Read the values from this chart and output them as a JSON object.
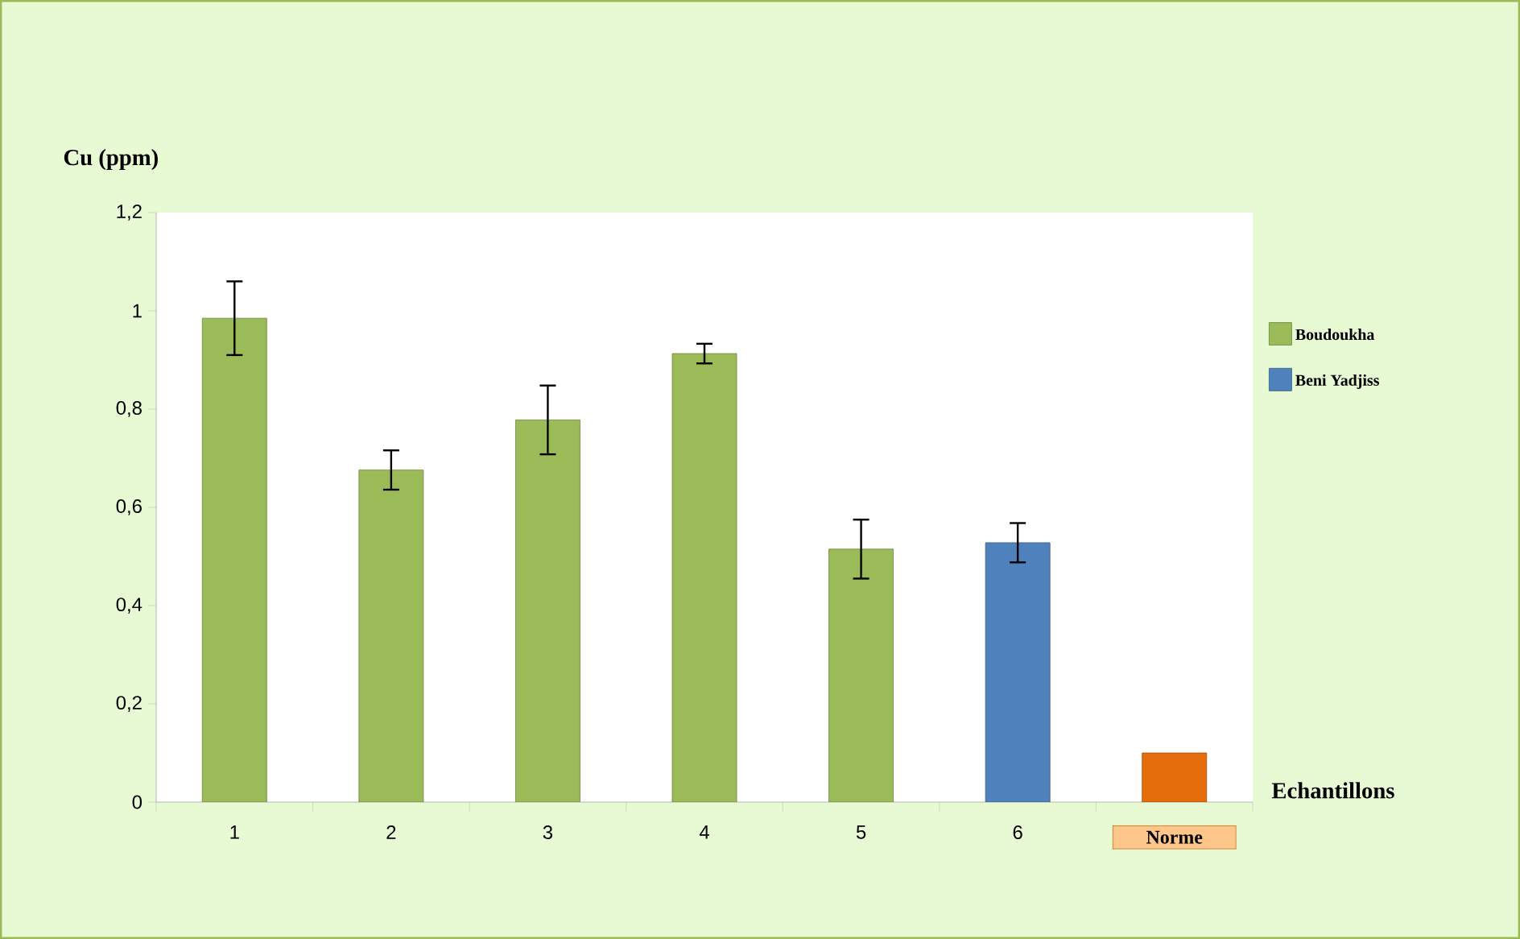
{
  "chart_data": {
    "type": "bar",
    "ylabel": "Cu (ppm)",
    "xlabel": "Echantillons",
    "categories": [
      "1",
      "2",
      "3",
      "4",
      "5",
      "6",
      "Norme"
    ],
    "series": [
      {
        "name": "Boudoukha",
        "color": "#9bbb59",
        "values": [
          0.985,
          0.676,
          0.778,
          0.913,
          0.515,
          null,
          null
        ],
        "errors": [
          0.075,
          0.04,
          0.07,
          0.02,
          0.06,
          null,
          null
        ]
      },
      {
        "name": "Beni Yadjiss",
        "color": "#4f81bd",
        "values": [
          null,
          null,
          null,
          null,
          null,
          0.528,
          null
        ],
        "errors": [
          null,
          null,
          null,
          null,
          null,
          0.04,
          null
        ]
      },
      {
        "color": "#e46c0a",
        "values": [
          null,
          null,
          null,
          null,
          null,
          null,
          0.1
        ]
      }
    ],
    "ylim": [
      0,
      1.2
    ],
    "yticks": [
      0,
      {
        "value": 0.2,
        "label": "0,2"
      },
      {
        "value": 0.4,
        "label": "0,4"
      },
      {
        "value": 0.6,
        "label": "0,6"
      },
      {
        "value": 0.8,
        "label": "0,8"
      },
      1,
      {
        "value": 1.2,
        "label": "1,2"
      }
    ],
    "legend": "right",
    "grid": false
  }
}
